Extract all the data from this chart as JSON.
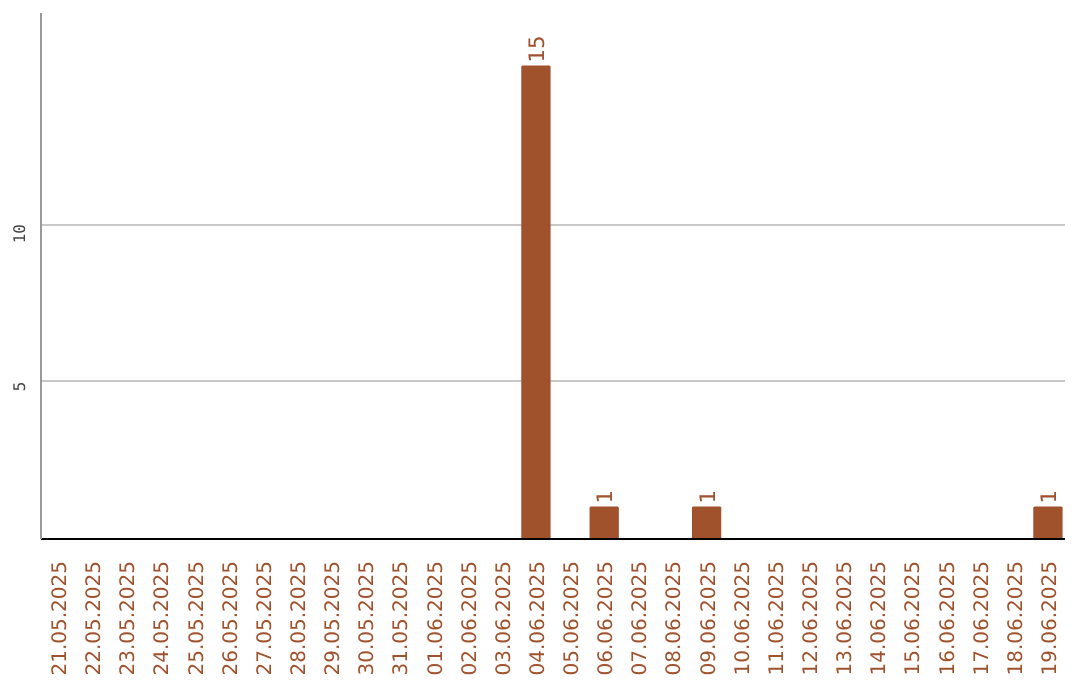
{
  "chart_data": {
    "type": "bar",
    "categories": [
      "21.05.2025",
      "22.05.2025",
      "23.05.2025",
      "24.05.2025",
      "25.05.2025",
      "26.05.2025",
      "27.05.2025",
      "28.05.2025",
      "29.05.2025",
      "30.05.2025",
      "31.05.2025",
      "01.06.2025",
      "02.06.2025",
      "03.06.2025",
      "04.06.2025",
      "05.06.2025",
      "06.06.2025",
      "07.06.2025",
      "08.06.2025",
      "09.06.2025",
      "10.06.2025",
      "11.06.2025",
      "12.06.2025",
      "13.06.2025",
      "14.06.2025",
      "15.06.2025",
      "16.06.2025",
      "17.06.2025",
      "18.06.2025",
      "19.06.2025"
    ],
    "values": [
      0,
      0,
      0,
      0,
      0,
      0,
      0,
      0,
      0,
      0,
      0,
      0,
      0,
      0,
      15,
      0,
      1,
      0,
      0,
      1,
      0,
      0,
      0,
      0,
      0,
      0,
      0,
      0,
      0,
      1
    ],
    "value_labels": [
      null,
      null,
      null,
      null,
      null,
      null,
      null,
      null,
      null,
      null,
      null,
      null,
      null,
      null,
      "15",
      null,
      "1",
      null,
      null,
      "1",
      null,
      null,
      null,
      null,
      null,
      null,
      null,
      null,
      null,
      "1"
    ],
    "color": "#a0522d",
    "ylim": [
      0,
      16.7
    ],
    "yticks": [
      5,
      10
    ],
    "grid": "y"
  }
}
